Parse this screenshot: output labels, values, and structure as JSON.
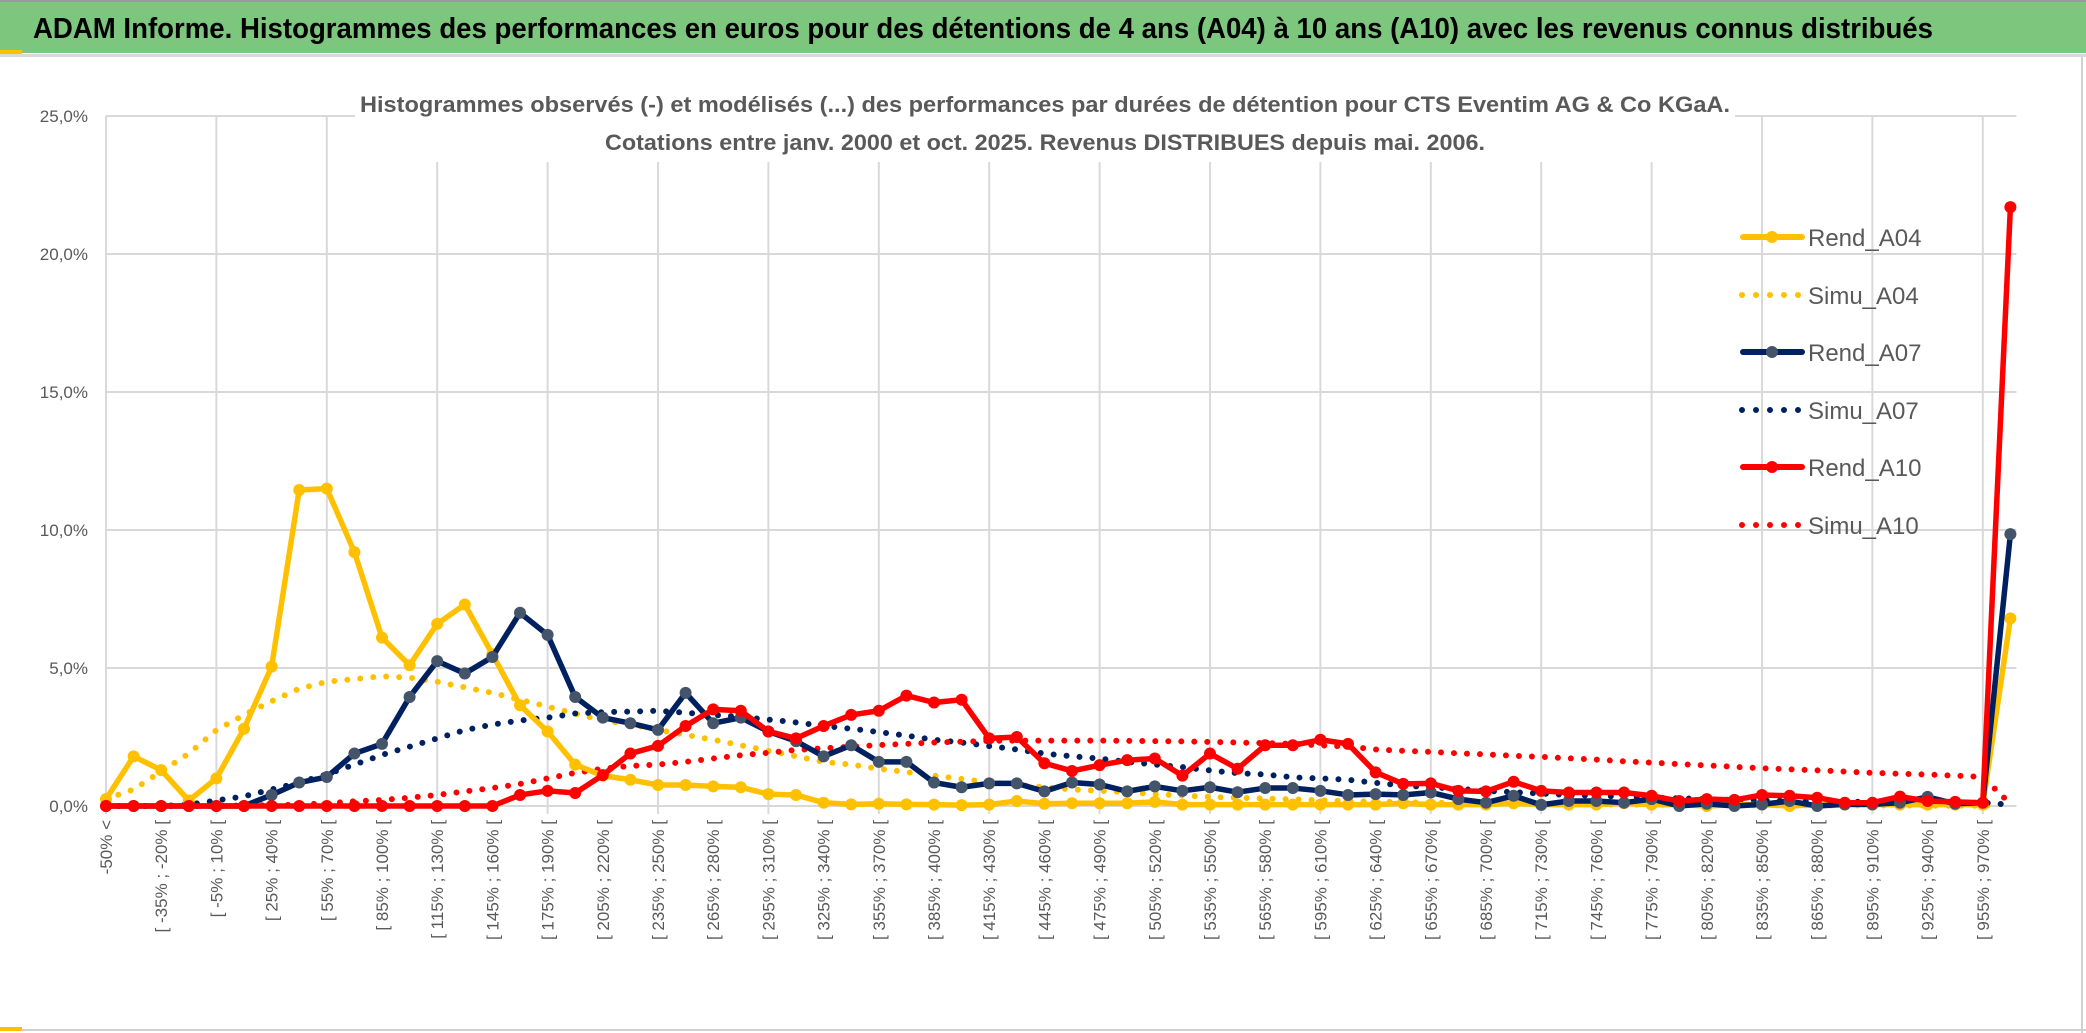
{
  "header": {
    "title": "ADAM Informe. Histogrammes des performances en euros pour des détentions de 4 ans (A04) à 10 ans (A10) avec les revenus connus distribués"
  },
  "colors": {
    "header_bg": "#7dc67d",
    "a04": "#ffc000",
    "a07": "#002060",
    "a07_marker": "#44546a",
    "a10": "#ff0000",
    "grid": "#d9d9d9",
    "text": "#595959"
  },
  "chart_data": {
    "type": "line",
    "title": "Histogrammes observés (-) et modélisés (...) des performances par durées de détention pour CTS Eventim AG & Co KGaA.",
    "subtitle": "Cotations entre janv. 2000 et oct. 2025. Revenus DISTRIBUES depuis mai. 2006.",
    "xlabel": "",
    "ylabel": "",
    "ylim": [
      0,
      25
    ],
    "y_ticks": [
      "0,0%",
      "5,0%",
      "10,0%",
      "15,0%",
      "20,0%",
      "25,0%"
    ],
    "y_tick_values": [
      0,
      5,
      10,
      15,
      20,
      25
    ],
    "grid": true,
    "legend_position": "right",
    "n_categories": 70,
    "x_tick_labels": [
      "-50% <",
      "[ -35% ; -20% [",
      "[ -5% ; 10% [",
      "[ 25% ; 40% [",
      "[ 55% ; 70% [",
      "[ 85% ; 100% [",
      "[ 115% ; 130% [",
      "[ 145% ; 160% [",
      "[ 175% ; 190% [",
      "[ 205% ; 220% [",
      "[ 235% ; 250% [",
      "[ 265% ; 280% [",
      "[ 295% ; 310% [",
      "[ 325% ; 340% [",
      "[ 355% ; 370% [",
      "[ 385% ; 400% [",
      "[ 415% ; 430% [",
      "[ 445% ; 460% [",
      "[ 475% ; 490% [",
      "[ 505% ; 520% [",
      "[ 535% ; 550% [",
      "[ 565% ; 580% [",
      "[ 595% ; 610% [",
      "[ 625% ; 640% [",
      "[ 655% ; 670% [",
      "[ 685% ; 700% [",
      "[ 715% ; 730% [",
      "[ 745% ; 760% [",
      "[ 775% ; 790% [",
      "[ 805% ; 820% [",
      "[ 835% ; 850% [",
      "[ 865% ; 880% [",
      "[ 895% ; 910% [",
      "[ 925% ; 940% [",
      "[ 955% ; 970% ["
    ],
    "series": [
      {
        "name": "Rend_A04",
        "style": "solid",
        "color": "#ffc000",
        "values": [
          0.25,
          1.8,
          1.3,
          0.2,
          1.0,
          2.8,
          5.05,
          11.45,
          11.5,
          9.2,
          6.1,
          5.1,
          6.6,
          7.3,
          5.5,
          3.65,
          2.7,
          1.5,
          1.1,
          0.95,
          0.76,
          0.76,
          0.71,
          0.68,
          0.43,
          0.4,
          0.12,
          0.06,
          0.08,
          0.06,
          0.05,
          0.03,
          0.05,
          0.18,
          0.08,
          0.1,
          0.1,
          0.1,
          0.15,
          0.05,
          0.05,
          0.05,
          0.05,
          0.05,
          0.05,
          0.05,
          0.05,
          0.1,
          0.05,
          0.05,
          0.05,
          0.1,
          0.05,
          0.05,
          0.05,
          0.1,
          0.05,
          0.05,
          0.0,
          0.05,
          0.05,
          0.0,
          0.05,
          0.05,
          0.05,
          0.05,
          0.05,
          0.05,
          0.05,
          6.8
        ]
      },
      {
        "name": "Simu_A04",
        "style": "dotted",
        "color": "#ffc000",
        "values": [
          0.25,
          0.6,
          1.25,
          1.9,
          2.75,
          3.3,
          3.8,
          4.25,
          4.5,
          4.6,
          4.7,
          4.65,
          4.5,
          4.3,
          4.1,
          3.85,
          3.6,
          3.35,
          3.1,
          2.95,
          2.76,
          2.58,
          2.4,
          2.2,
          2.0,
          1.8,
          1.6,
          1.5,
          1.35,
          1.23,
          1.1,
          0.98,
          0.86,
          0.77,
          0.68,
          0.6,
          0.55,
          0.5,
          0.43,
          0.38,
          0.33,
          0.3,
          0.27,
          0.24,
          0.21,
          0.18,
          0.16,
          0.14,
          0.12,
          0.11,
          0.1,
          0.09,
          0.08,
          0.07,
          0.06,
          0.05,
          0.05,
          0.04,
          0.04,
          0.03,
          0.03,
          0.03,
          0.02,
          0.02,
          0.02,
          0.02,
          0.01,
          0.01,
          0.01,
          0.1
        ]
      },
      {
        "name": "Rend_A07",
        "style": "solid",
        "color": "#002060",
        "values": [
          0,
          0,
          0,
          0,
          0,
          0,
          0.4,
          0.85,
          1.05,
          1.9,
          2.25,
          3.95,
          5.25,
          4.8,
          5.4,
          7.0,
          6.2,
          3.95,
          3.2,
          3.0,
          2.76,
          4.1,
          3.0,
          3.2,
          2.7,
          2.35,
          1.8,
          2.2,
          1.6,
          1.6,
          0.85,
          0.68,
          0.82,
          0.82,
          0.53,
          0.85,
          0.78,
          0.53,
          0.71,
          0.55,
          0.68,
          0.5,
          0.65,
          0.65,
          0.55,
          0.4,
          0.43,
          0.4,
          0.49,
          0.25,
          0.12,
          0.37,
          0.04,
          0.18,
          0.18,
          0.12,
          0.25,
          0.0,
          0.08,
          0.0,
          0.06,
          0.18,
          0.0,
          0.06,
          0.06,
          0.12,
          0.33,
          0.08,
          0.12,
          9.85
        ]
      },
      {
        "name": "Simu_A07",
        "style": "dotted",
        "color": "#002060",
        "values": [
          0,
          0,
          0,
          0.05,
          0.2,
          0.35,
          0.6,
          0.85,
          1.15,
          1.5,
          1.85,
          2.15,
          2.45,
          2.75,
          2.95,
          3.1,
          3.2,
          3.35,
          3.4,
          3.42,
          3.45,
          3.38,
          3.3,
          3.23,
          3.13,
          3.03,
          2.9,
          2.8,
          2.68,
          2.55,
          2.4,
          2.3,
          2.17,
          2.05,
          1.9,
          1.8,
          1.72,
          1.6,
          1.5,
          1.41,
          1.29,
          1.19,
          1.14,
          1.04,
          1.0,
          0.95,
          0.84,
          0.74,
          0.68,
          0.62,
          0.55,
          0.5,
          0.45,
          0.4,
          0.37,
          0.34,
          0.3,
          0.28,
          0.25,
          0.22,
          0.2,
          0.18,
          0.17,
          0.16,
          0.15,
          0.14,
          0.13,
          0.12,
          0.12,
          0.05
        ]
      },
      {
        "name": "Rend_A10",
        "style": "solid",
        "color": "#ff0000",
        "values": [
          0,
          0,
          0,
          0,
          0,
          0,
          0,
          0,
          0,
          0,
          0,
          0,
          0,
          0,
          0,
          0.4,
          0.55,
          0.47,
          1.12,
          1.9,
          2.18,
          2.9,
          3.5,
          3.45,
          2.7,
          2.45,
          2.9,
          3.3,
          3.45,
          4.0,
          3.75,
          3.85,
          2.45,
          2.5,
          1.55,
          1.27,
          1.48,
          1.66,
          1.72,
          1.1,
          1.9,
          1.35,
          2.2,
          2.2,
          2.4,
          2.25,
          1.22,
          0.8,
          0.82,
          0.55,
          0.53,
          0.88,
          0.55,
          0.49,
          0.49,
          0.49,
          0.37,
          0.18,
          0.25,
          0.22,
          0.4,
          0.37,
          0.3,
          0.12,
          0.12,
          0.34,
          0.18,
          0.15,
          0.12,
          21.7
        ]
      },
      {
        "name": "Simu_A10",
        "style": "dotted",
        "color": "#ff0000",
        "values": [
          0,
          0,
          0,
          0,
          0,
          0.02,
          0.03,
          0.05,
          0.1,
          0.17,
          0.22,
          0.3,
          0.4,
          0.53,
          0.65,
          0.8,
          1.0,
          1.2,
          1.35,
          1.45,
          1.5,
          1.6,
          1.72,
          1.84,
          1.93,
          2.03,
          2.09,
          2.15,
          2.21,
          2.25,
          2.3,
          2.33,
          2.36,
          2.37,
          2.37,
          2.37,
          2.37,
          2.36,
          2.35,
          2.34,
          2.32,
          2.3,
          2.28,
          2.25,
          2.2,
          2.15,
          2.05,
          2.0,
          1.96,
          1.91,
          1.87,
          1.82,
          1.78,
          1.73,
          1.68,
          1.62,
          1.57,
          1.52,
          1.47,
          1.42,
          1.37,
          1.33,
          1.29,
          1.25,
          1.2,
          1.17,
          1.14,
          1.1,
          1.05,
          0.08
        ]
      }
    ]
  }
}
